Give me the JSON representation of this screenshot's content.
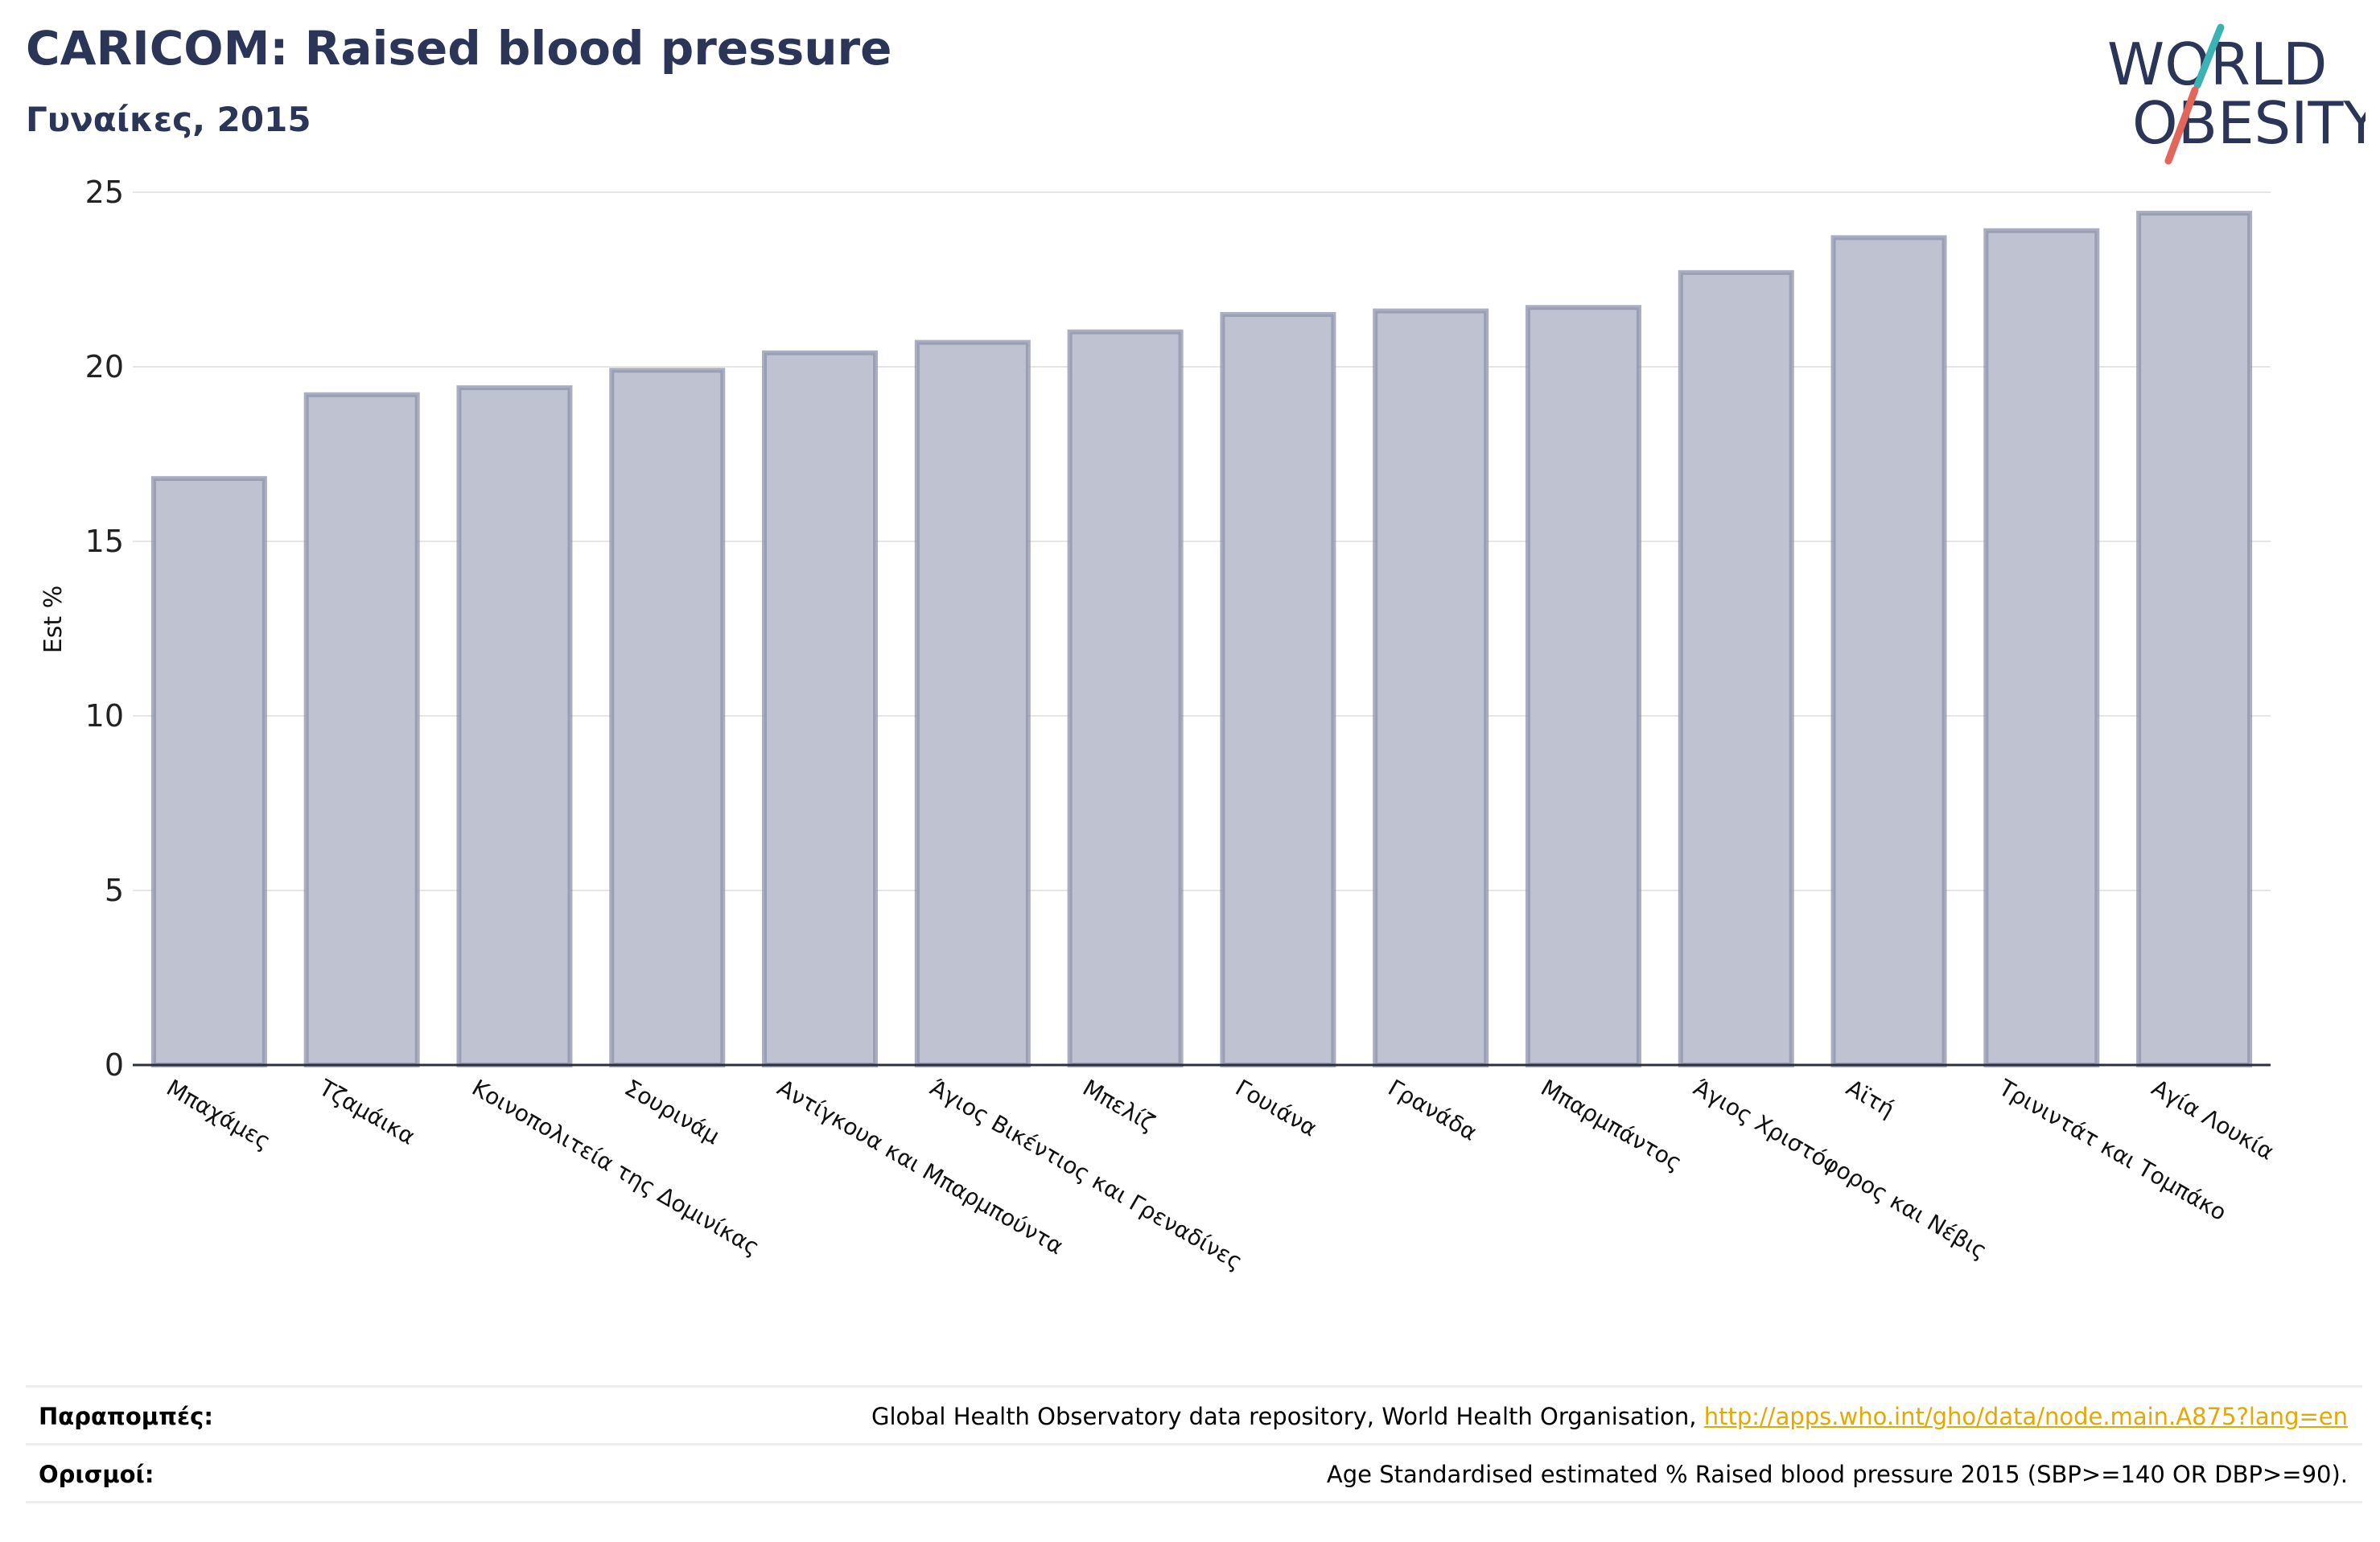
{
  "header": {
    "title": "CARICOM: Raised blood pressure",
    "subtitle": "Γυναίκες, 2015"
  },
  "logo": {
    "line1": "WORLD",
    "line2": "OBESITY",
    "text_color": "#2b3558",
    "slash_teal": "#3bb3b5",
    "slash_coral": "#e2675a"
  },
  "chart_data": {
    "type": "bar",
    "categories": [
      "Μπαχάμες",
      "Τζαμάικα",
      "Κοινοπολιτεία της Δομινίκας",
      "Σουρινάμ",
      "Αντίγκουα και Μπαρμπούντα",
      "Άγιος Βικέντιος και Γρεναδίνες",
      "Μπελίζ",
      "Γουιάνα",
      "Γρανάδα",
      "Μπαρμπάντος",
      "Άγιος Χριστόφορος και Νέβις",
      "Αϊτή",
      "Τρινιντάτ και Τομπάκο",
      "Αγία Λουκία"
    ],
    "values": [
      16.8,
      19.2,
      19.4,
      19.9,
      20.4,
      20.7,
      21.0,
      21.5,
      21.6,
      21.7,
      22.7,
      23.7,
      23.9,
      24.4
    ],
    "ylabel": "Est %",
    "xlabel": "",
    "ylim": [
      0,
      25
    ],
    "yticks": [
      0,
      5,
      10,
      15,
      20,
      25
    ],
    "grid": true,
    "bar_fill": "#bfc2d0",
    "bar_stroke": "#8e93ab",
    "axis_color": "#2b2f44"
  },
  "footer": {
    "references_label": "Παραπομπές:",
    "references_text": "Global Health Observatory data repository, World Health Organisation, ",
    "references_link": "http://apps.who.int/gho/data/node.main.A875?lang=en",
    "definitions_label": "Ορισμοί:",
    "definitions_text": "Age Standardised estimated % Raised blood pressure 2015 (SBP>=140 OR DBP>=90)."
  }
}
